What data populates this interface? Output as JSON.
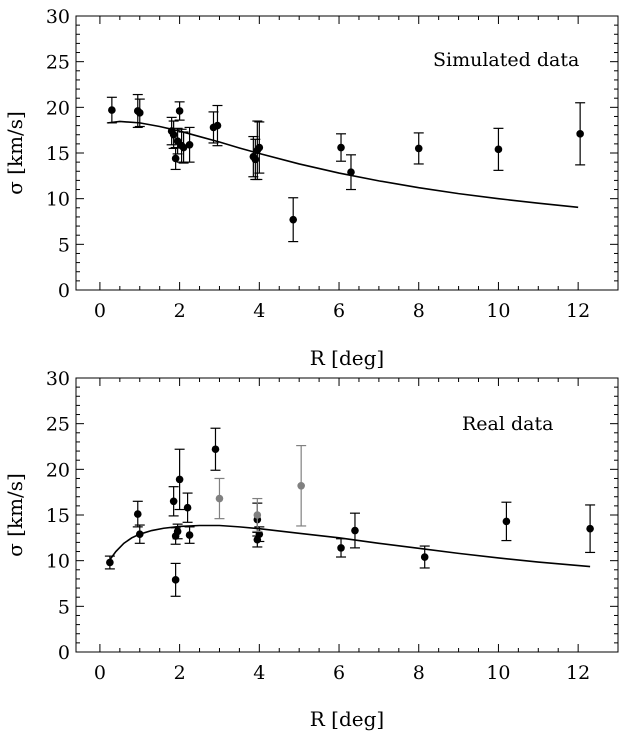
{
  "chart_data": [
    {
      "type": "scatter",
      "annotation": "Simulated data",
      "xlabel": "R [deg]",
      "ylabel": "σ [km/s]",
      "xlim": [
        -0.6,
        13.0
      ],
      "ylim": [
        0,
        30
      ],
      "xticks": [
        0,
        2,
        4,
        6,
        8,
        10,
        12
      ],
      "yticks": [
        0,
        5,
        10,
        15,
        20,
        25,
        30
      ],
      "grid": false,
      "series": [
        {
          "kind": "points",
          "color": "#000000",
          "points": [
            {
              "x": 0.3,
              "y": 19.7,
              "err": 1.4
            },
            {
              "x": 0.95,
              "y": 19.6,
              "err": 1.8
            },
            {
              "x": 1.0,
              "y": 19.4,
              "err": 1.5
            },
            {
              "x": 1.8,
              "y": 17.4,
              "err": 1.5
            },
            {
              "x": 1.85,
              "y": 17.0,
              "err": 1.5
            },
            {
              "x": 1.9,
              "y": 14.4,
              "err": 1.2
            },
            {
              "x": 1.95,
              "y": 16.3,
              "err": 1.4
            },
            {
              "x": 2.0,
              "y": 19.6,
              "err": 1.0
            },
            {
              "x": 2.05,
              "y": 15.8,
              "err": 1.8
            },
            {
              "x": 2.1,
              "y": 15.6,
              "err": 1.7
            },
            {
              "x": 2.25,
              "y": 15.9,
              "err": 1.9
            },
            {
              "x": 2.85,
              "y": 17.8,
              "err": 1.7
            },
            {
              "x": 2.95,
              "y": 18.0,
              "err": 2.2
            },
            {
              "x": 3.85,
              "y": 14.6,
              "err": 2.2
            },
            {
              "x": 3.9,
              "y": 14.3,
              "err": 2.2
            },
            {
              "x": 3.95,
              "y": 15.3,
              "err": 3.2
            },
            {
              "x": 4.0,
              "y": 15.6,
              "err": 2.8
            },
            {
              "x": 4.85,
              "y": 7.7,
              "err": 2.4
            },
            {
              "x": 6.05,
              "y": 15.6,
              "err": 1.5
            },
            {
              "x": 6.3,
              "y": 12.9,
              "err": 1.9
            },
            {
              "x": 8.0,
              "y": 15.5,
              "err": 1.7
            },
            {
              "x": 10.0,
              "y": 15.4,
              "err": 2.3
            },
            {
              "x": 12.05,
              "y": 17.1,
              "err": 3.4
            }
          ]
        },
        {
          "kind": "curve",
          "color": "#000000",
          "points": [
            [
              0.2,
              18.3
            ],
            [
              0.5,
              18.45
            ],
            [
              1.0,
              18.3
            ],
            [
              1.5,
              17.9
            ],
            [
              2.0,
              17.4
            ],
            [
              2.5,
              16.8
            ],
            [
              3.0,
              16.2
            ],
            [
              3.5,
              15.55
            ],
            [
              4.0,
              14.95
            ],
            [
              5.0,
              13.8
            ],
            [
              6.0,
              12.8
            ],
            [
              7.0,
              11.95
            ],
            [
              8.0,
              11.2
            ],
            [
              9.0,
              10.55
            ],
            [
              10.0,
              10.0
            ],
            [
              11.0,
              9.5
            ],
            [
              12.0,
              9.05
            ]
          ]
        }
      ]
    },
    {
      "type": "scatter",
      "annotation": "Real data",
      "xlabel": "R [deg]",
      "ylabel": "σ [km/s]",
      "xlim": [
        -0.6,
        13.0
      ],
      "ylim": [
        0,
        30
      ],
      "xticks": [
        0,
        2,
        4,
        6,
        8,
        10,
        12
      ],
      "yticks": [
        0,
        5,
        10,
        15,
        20,
        25,
        30
      ],
      "grid": false,
      "series": [
        {
          "kind": "points",
          "color": "#000000",
          "points": [
            {
              "x": 0.25,
              "y": 9.8,
              "err": 0.7
            },
            {
              "x": 0.95,
              "y": 15.1,
              "err": 1.4
            },
            {
              "x": 1.0,
              "y": 12.9,
              "err": 1.0
            },
            {
              "x": 1.85,
              "y": 16.5,
              "err": 1.6
            },
            {
              "x": 1.9,
              "y": 12.7,
              "err": 0.9
            },
            {
              "x": 1.9,
              "y": 7.9,
              "err": 1.8
            },
            {
              "x": 1.95,
              "y": 13.2,
              "err": 0.8
            },
            {
              "x": 2.0,
              "y": 18.9,
              "err": 3.3
            },
            {
              "x": 2.2,
              "y": 15.8,
              "err": 1.6
            },
            {
              "x": 2.25,
              "y": 12.8,
              "err": 0.9
            },
            {
              "x": 2.9,
              "y": 22.2,
              "err": 2.3
            },
            {
              "x": 3.95,
              "y": 14.5,
              "err": 1.8
            },
            {
              "x": 3.95,
              "y": 12.3,
              "err": 0.8
            },
            {
              "x": 4.0,
              "y": 12.9,
              "err": 0.8
            },
            {
              "x": 6.05,
              "y": 11.4,
              "err": 1.0
            },
            {
              "x": 6.4,
              "y": 13.3,
              "err": 1.9
            },
            {
              "x": 8.15,
              "y": 10.4,
              "err": 1.2
            },
            {
              "x": 10.2,
              "y": 14.3,
              "err": 2.1
            },
            {
              "x": 12.3,
              "y": 13.5,
              "err": 2.6
            }
          ]
        },
        {
          "kind": "points",
          "color": "#808080",
          "points": [
            {
              "x": 3.0,
              "y": 16.8,
              "err": 2.2
            },
            {
              "x": 3.95,
              "y": 15.0,
              "err": 1.8
            },
            {
              "x": 5.05,
              "y": 18.2,
              "err": 4.4
            }
          ]
        },
        {
          "kind": "curve",
          "color": "#000000",
          "points": [
            [
              0.2,
              9.8
            ],
            [
              0.4,
              11.0
            ],
            [
              0.6,
              11.9
            ],
            [
              0.8,
              12.5
            ],
            [
              1.0,
              12.9
            ],
            [
              1.3,
              13.3
            ],
            [
              1.6,
              13.55
            ],
            [
              2.0,
              13.75
            ],
            [
              2.5,
              13.85
            ],
            [
              3.0,
              13.85
            ],
            [
              3.5,
              13.7
            ],
            [
              4.0,
              13.5
            ],
            [
              5.0,
              13.0
            ],
            [
              6.0,
              12.5
            ],
            [
              7.0,
              11.9
            ],
            [
              8.0,
              11.35
            ],
            [
              9.0,
              10.8
            ],
            [
              10.0,
              10.3
            ],
            [
              11.0,
              9.85
            ],
            [
              12.3,
              9.35
            ]
          ]
        }
      ]
    }
  ]
}
